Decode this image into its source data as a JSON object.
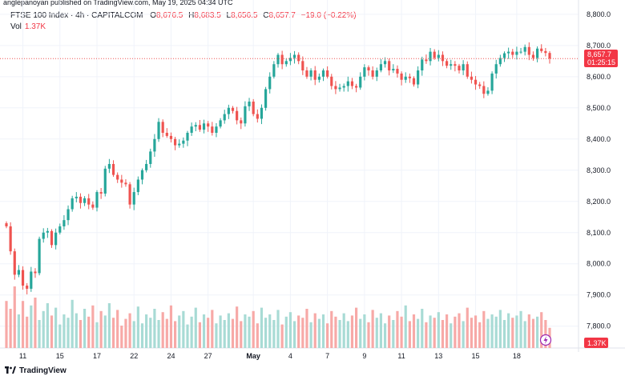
{
  "header": {
    "published": "anglepanoyan published on TradingView.com, May 19, 2025 04:34 UTC",
    "symbol": "FTSE 100 Index · 4h · CAPITALCOM",
    "o_label": "O",
    "o_value": "8,676.5",
    "h_label": "H",
    "h_value": "8,683.5",
    "l_label": "L",
    "l_value": "8,656.5",
    "c_label": "C",
    "c_value": "8,657.7",
    "change": "−19.0 (−0.22%)",
    "vol_label": "Vol",
    "vol_value": "1.37K"
  },
  "footer": {
    "brand": "TradingView"
  },
  "colors": {
    "up": "#26a69a",
    "down": "#ef5350",
    "up_vol": "#a8dbd5",
    "down_vol": "#f7a9a7",
    "grid": "#f0f3fa"
  },
  "chart_data": {
    "type": "candlestick",
    "interval": "4h",
    "ylim": [
      7730,
      8815
    ],
    "y_ticks": [
      7800,
      7900,
      8000,
      8100,
      8200,
      8300,
      8400,
      8500,
      8600,
      8700,
      8800
    ],
    "y_tick_labels": [
      "7,800.0",
      "7,900.0",
      "8,000.0",
      "8,100.0",
      "8,200.0",
      "8,300.0",
      "8,400.0",
      "8,500.0",
      "8,600.0",
      "8,700.0",
      "8,800.0"
    ],
    "x_labels": [
      {
        "label": "11",
        "idx": 4
      },
      {
        "label": "15",
        "idx": 13
      },
      {
        "label": "17",
        "idx": 22
      },
      {
        "label": "22",
        "idx": 31
      },
      {
        "label": "24",
        "idx": 40
      },
      {
        "label": "27",
        "idx": 49
      },
      {
        "label": "May",
        "idx": 60
      },
      {
        "label": "4",
        "idx": 69
      },
      {
        "label": "7",
        "idx": 78
      },
      {
        "label": "9",
        "idx": 87
      },
      {
        "label": "11",
        "idx": 96
      },
      {
        "label": "13",
        "idx": 105
      },
      {
        "label": "15",
        "idx": 114
      },
      {
        "label": "18",
        "idx": 124
      }
    ],
    "last_price": "8,657.7",
    "countdown": "01:25:15",
    "last_volume": "1.37K",
    "close": [
      8120,
      8040,
      7965,
      7980,
      7930,
      7920,
      7975,
      7970,
      8080,
      8100,
      8105,
      8060,
      8100,
      8120,
      8140,
      8175,
      8210,
      8215,
      8195,
      8210,
      8190,
      8180,
      8230,
      8225,
      8305,
      8320,
      8285,
      8270,
      8260,
      8255,
      8190,
      8230,
      8270,
      8300,
      8320,
      8360,
      8400,
      8455,
      8420,
      8410,
      8400,
      8380,
      8385,
      8395,
      8420,
      8440,
      8445,
      8430,
      8450,
      8440,
      8420,
      8440,
      8460,
      8480,
      8500,
      8490,
      8460,
      8450,
      8505,
      8520,
      8480,
      8465,
      8500,
      8560,
      8600,
      8640,
      8670,
      8640,
      8650,
      8660,
      8670,
      8650,
      8620,
      8600,
      8620,
      8590,
      8600,
      8620,
      8600,
      8570,
      8560,
      8565,
      8570,
      8585,
      8570,
      8565,
      8600,
      8630,
      8620,
      8600,
      8620,
      8640,
      8650,
      8620,
      8625,
      8610,
      8590,
      8600,
      8595,
      8575,
      8620,
      8655,
      8650,
      8680,
      8660,
      8670,
      8650,
      8635,
      8640,
      8635,
      8620,
      8640,
      8600,
      8590,
      8575,
      8570,
      8545,
      8555,
      8610,
      8640,
      8660,
      8675,
      8680,
      8670,
      8680,
      8680,
      8695,
      8670,
      8660,
      8690,
      8682,
      8676,
      8658
    ],
    "open": [
      8130,
      8120,
      8040,
      7965,
      7980,
      7930,
      7920,
      7975,
      7970,
      8080,
      8100,
      8105,
      8060,
      8100,
      8120,
      8140,
      8175,
      8210,
      8215,
      8195,
      8210,
      8190,
      8180,
      8230,
      8225,
      8305,
      8320,
      8285,
      8270,
      8260,
      8255,
      8190,
      8230,
      8270,
      8300,
      8320,
      8360,
      8400,
      8455,
      8420,
      8410,
      8400,
      8380,
      8385,
      8395,
      8420,
      8440,
      8445,
      8430,
      8450,
      8440,
      8420,
      8440,
      8460,
      8480,
      8500,
      8490,
      8460,
      8450,
      8505,
      8520,
      8480,
      8465,
      8500,
      8560,
      8600,
      8640,
      8670,
      8640,
      8650,
      8660,
      8670,
      8650,
      8620,
      8600,
      8620,
      8590,
      8600,
      8620,
      8600,
      8570,
      8560,
      8565,
      8570,
      8585,
      8570,
      8565,
      8600,
      8630,
      8620,
      8600,
      8620,
      8640,
      8650,
      8620,
      8625,
      8610,
      8590,
      8600,
      8595,
      8575,
      8620,
      8655,
      8650,
      8680,
      8660,
      8670,
      8650,
      8635,
      8640,
      8635,
      8620,
      8640,
      8600,
      8590,
      8575,
      8570,
      8545,
      8555,
      8610,
      8640,
      8660,
      8675,
      8680,
      8670,
      8680,
      8680,
      8695,
      8670,
      8660,
      8690,
      8682,
      8676
    ],
    "volume_scale": [
      0.42,
      0.35,
      0.55,
      0.3,
      0.42,
      0.28,
      0.38,
      0.45,
      0.25,
      0.33,
      0.4,
      0.29,
      0.36,
      0.21,
      0.3,
      0.27,
      0.43,
      0.31,
      0.25,
      0.35,
      0.28,
      0.38,
      0.23,
      0.33,
      0.29,
      0.4,
      0.27,
      0.34,
      0.2,
      0.26,
      0.31,
      0.24,
      0.37,
      0.22,
      0.3,
      0.27,
      0.35,
      0.25,
      0.32,
      0.26,
      0.38,
      0.24,
      0.29,
      0.33,
      0.21,
      0.28,
      0.36,
      0.23,
      0.3,
      0.27,
      0.34,
      0.22,
      0.29,
      0.25,
      0.31,
      0.26,
      0.37,
      0.24,
      0.3,
      0.28,
      0.33,
      0.22,
      0.36,
      0.27,
      0.3,
      0.25,
      0.34,
      0.21,
      0.28,
      0.32,
      0.24,
      0.29,
      0.27,
      0.35,
      0.23,
      0.31,
      0.26,
      0.3,
      0.22,
      0.33,
      0.28,
      0.25,
      0.31,
      0.24,
      0.29,
      0.36,
      0.26,
      0.3,
      0.23,
      0.34,
      0.27,
      0.31,
      0.22,
      0.29,
      0.25,
      0.33,
      0.28,
      0.38,
      0.24,
      0.3,
      0.26,
      0.35,
      0.23,
      0.29,
      0.27,
      0.32,
      0.25,
      0.3,
      0.22,
      0.28,
      0.31,
      0.24,
      0.36,
      0.27,
      0.29,
      0.23,
      0.33,
      0.26,
      0.3,
      0.28,
      0.34,
      0.25,
      0.31,
      0.27,
      0.29,
      0.33,
      0.24,
      0.3,
      0.26,
      0.28,
      0.32,
      0.25,
      0.18
    ]
  }
}
